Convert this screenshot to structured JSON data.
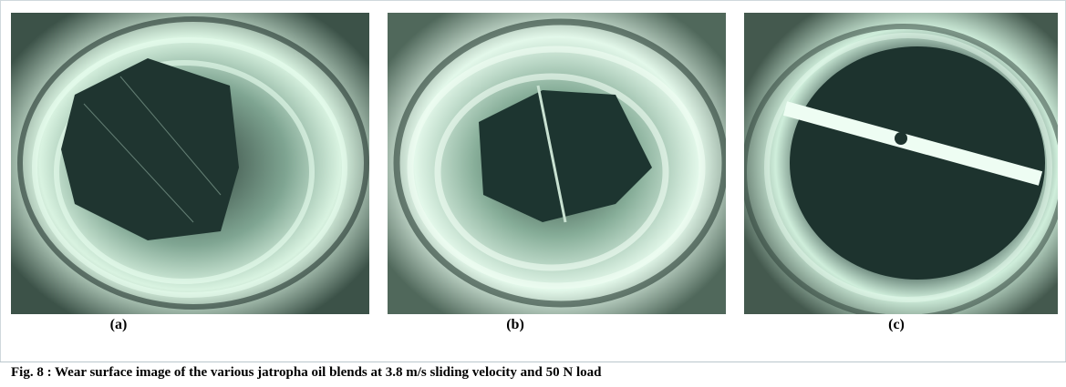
{
  "figure": {
    "panels": [
      {
        "label": "(a)"
      },
      {
        "label": "(b)"
      },
      {
        "label": "(c)"
      }
    ],
    "caption": {
      "number": "Fig. 8 :",
      "text": "Wear surface image of the various jatropha oil blends at 3.8 m/s sliding velocity and 50 N load"
    }
  }
}
